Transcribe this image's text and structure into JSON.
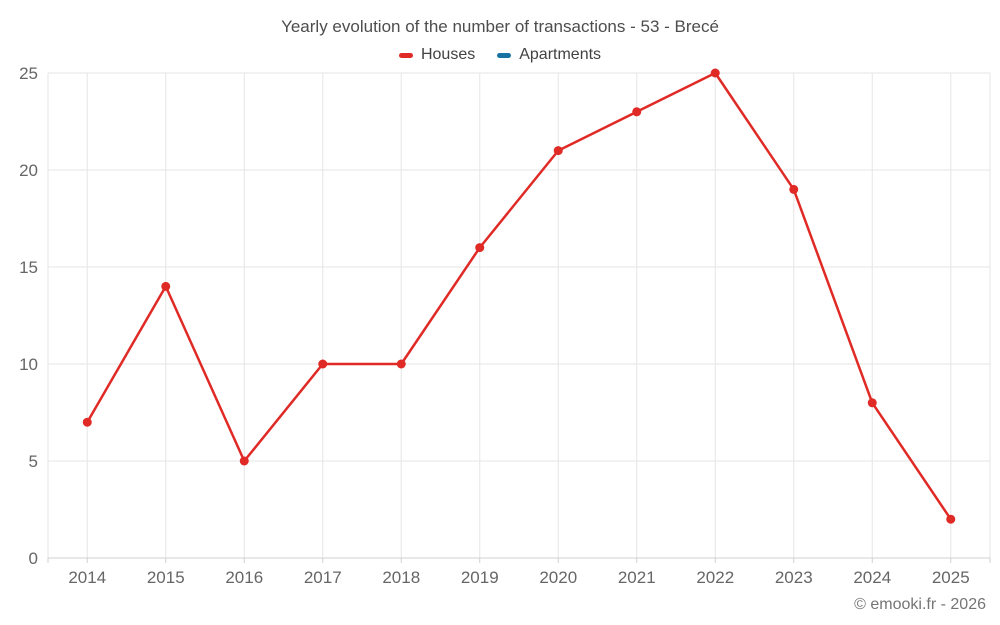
{
  "header": {
    "title": "Yearly evolution of the number of transactions - 53 - Brecé"
  },
  "footer": {
    "copyright": "© emooki.fr - 2026"
  },
  "chart_data": {
    "type": "line",
    "title": "Yearly evolution of the number of transactions - 53 - Brecé",
    "categories": [
      "2014",
      "2015",
      "2016",
      "2017",
      "2018",
      "2019",
      "2020",
      "2021",
      "2022",
      "2023",
      "2024",
      "2025"
    ],
    "series": [
      {
        "name": "Houses",
        "color": "#e02a26",
        "values": [
          7,
          14,
          5,
          10,
          10,
          16,
          21,
          23,
          25,
          19,
          8,
          2
        ]
      },
      {
        "name": "Apartments",
        "color": "#1873a3",
        "values": []
      }
    ],
    "xlabel": "",
    "ylabel": "",
    "ylim": [
      0,
      25
    ],
    "ytick_step": 5,
    "yticks": [
      0,
      5,
      10,
      15,
      20,
      25
    ],
    "grid": true,
    "legend_position": "top",
    "marker": "circle"
  },
  "colors": {
    "houses_series": "#e02a26",
    "apartments_series": "#1873a3",
    "grid_line": "#e6e6e6",
    "axis_line": "#d0d0d0",
    "axis_label": "#666666",
    "title_text": "#4d4d4d",
    "copyright_text": "#757575"
  }
}
